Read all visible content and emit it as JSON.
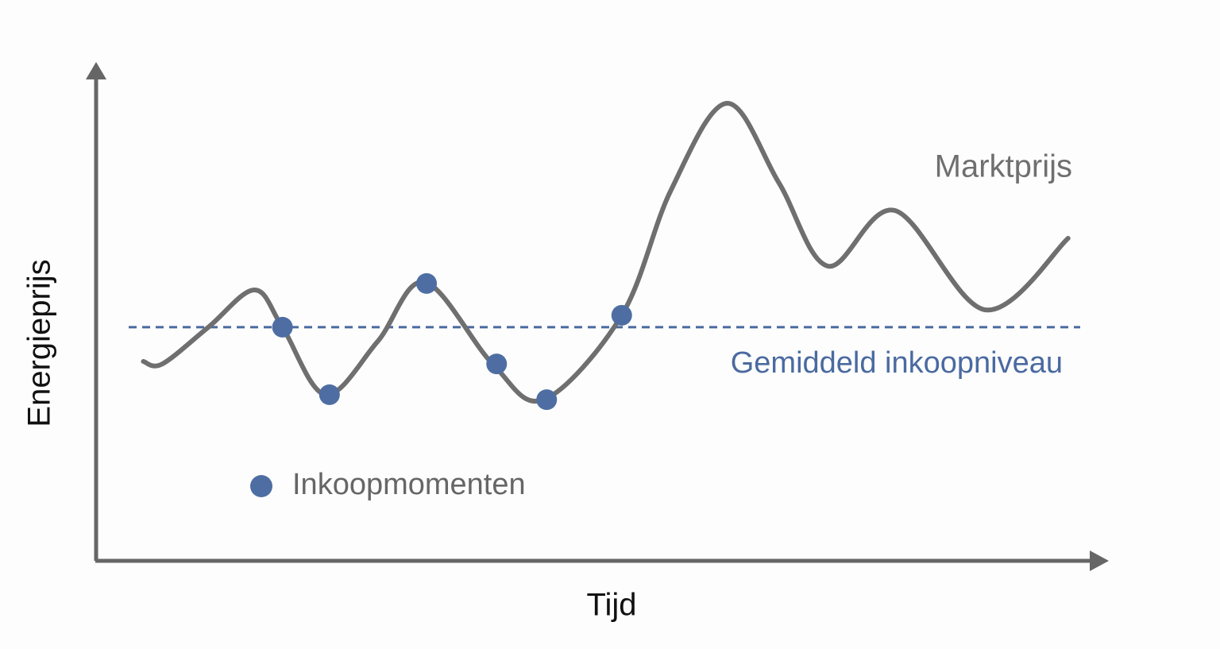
{
  "chart_data": {
    "type": "line",
    "x_label": "Tijd",
    "y_label": "Energieprijs",
    "xlim": [
      0,
      100
    ],
    "ylim": [
      0,
      100
    ],
    "series": [
      {
        "name": "Marktprijs",
        "color": "#6f6f6f",
        "x": [
          4.8,
          6.7,
          11.3,
          15.9,
          18.7,
          23.0,
          28.2,
          32.9,
          39.7,
          44.8,
          52.6,
          57.5,
          63.1,
          68.3,
          73.2,
          79.9,
          88.9,
          97.2
        ],
        "values": [
          40.0,
          39.5,
          46.9,
          54.4,
          46.9,
          33.3,
          44.0,
          56.0,
          39.5,
          32.3,
          49.3,
          74.4,
          92.0,
          76.0,
          59.2,
          70.4,
          50.4,
          64.8
        ]
      }
    ],
    "reference_line": {
      "name": "Gemiddeld inkoopniveau",
      "value": 46.9,
      "color": "#4a6aa0"
    },
    "points": {
      "name": "Inkoopmomenten",
      "color": "#4e6ea3",
      "x": [
        18.7,
        23.4,
        33.1,
        40.1,
        45.1,
        52.6
      ],
      "values": [
        46.9,
        33.3,
        55.7,
        39.5,
        32.3,
        49.3
      ]
    }
  }
}
